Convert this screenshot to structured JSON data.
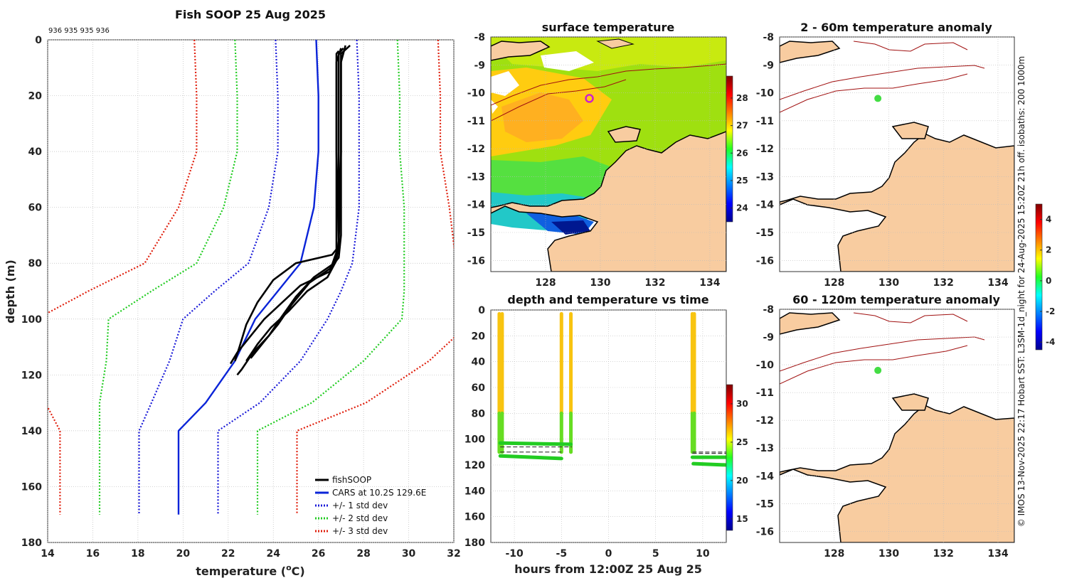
{
  "figure_title": "Fish SOOP 25 Aug 2025",
  "vessel_ids": "936 935 935 936",
  "credit": "© IMOS 13-Nov-2025 22:17 Hobart SST: L3SM-1d_night for 24-Aug-2025 15:20Z 21h off. isobaths: 200  1000m",
  "colors": {
    "fishsoop": "#000000",
    "cars": "#0a24d8",
    "std1": "#1a1ad8",
    "std2": "#22cc22",
    "std3": "#e0200e",
    "land": "#f8cca0",
    "isobath": "#a01010",
    "marker": "#cc22cc",
    "anomaly_marker": "#44dd44"
  },
  "chart_data": [
    {
      "id": "profile",
      "type": "line",
      "title": "Fish SOOP 25 Aug 2025",
      "xlabel_prefix": "temperature (",
      "xlabel_sup": "o",
      "xlabel_suffix": "C)",
      "ylabel": "depth (m)",
      "xlim": [
        14,
        32
      ],
      "ylim": [
        180,
        0
      ],
      "xticks": [
        "14",
        "16",
        "18",
        "20",
        "22",
        "24",
        "26",
        "28",
        "30",
        "32"
      ],
      "yticks": [
        "0",
        "20",
        "40",
        "60",
        "80",
        "100",
        "120",
        "140",
        "160",
        "180"
      ],
      "legend_labels": [
        "fishSOOP",
        "CARS at 10.2S 129.6E",
        "+/- 1 std dev",
        "+/- 2 std dev",
        "+/- 3 std dev"
      ],
      "cars_mean": [
        [
          25.9,
          0
        ],
        [
          26.0,
          20
        ],
        [
          26.0,
          40
        ],
        [
          25.8,
          60
        ],
        [
          25.2,
          80
        ],
        [
          24.2,
          90
        ],
        [
          23.2,
          100
        ],
        [
          22.3,
          115
        ],
        [
          21.0,
          130
        ],
        [
          19.8,
          140
        ],
        [
          19.8,
          170
        ]
      ],
      "std_offsets": {
        "std1": [
          1.8,
          1.8,
          1.8,
          2.0,
          2.3,
          2.8,
          3.2,
          2.9,
          2.4,
          1.75,
          1.75
        ],
        "std2": [
          3.6,
          3.6,
          3.6,
          4.0,
          4.6,
          5.6,
          6.5,
          5.7,
          4.7,
          3.5,
          3.5
        ],
        "std3": [
          5.4,
          5.4,
          5.4,
          6.0,
          6.9,
          8.4,
          9.7,
          8.6,
          7.1,
          5.25,
          5.25
        ]
      },
      "fishsoop_casts": [
        [
          [
            27.4,
            2
          ],
          [
            27.0,
            5
          ],
          [
            27.0,
            40
          ],
          [
            27.0,
            70
          ],
          [
            26.9,
            78
          ],
          [
            26.5,
            82
          ],
          [
            25.6,
            87
          ],
          [
            24.8,
            95
          ],
          [
            24.2,
            102
          ],
          [
            23.6,
            108
          ],
          [
            23.0,
            114
          ]
        ],
        [
          [
            27.1,
            3
          ],
          [
            26.9,
            5
          ],
          [
            26.9,
            40
          ],
          [
            26.9,
            75
          ],
          [
            26.7,
            80
          ],
          [
            25.8,
            85
          ],
          [
            25.0,
            92
          ],
          [
            24.3,
            100
          ],
          [
            23.8,
            106
          ],
          [
            23.1,
            112
          ],
          [
            22.6,
            118
          ],
          [
            22.4,
            120
          ]
        ],
        [
          [
            26.9,
            4
          ],
          [
            26.8,
            5
          ],
          [
            26.8,
            40
          ],
          [
            26.8,
            76
          ],
          [
            26.5,
            83
          ],
          [
            25.2,
            88
          ],
          [
            24.4,
            94
          ],
          [
            23.6,
            100
          ],
          [
            23.0,
            106
          ],
          [
            22.4,
            112
          ],
          [
            22.1,
            116
          ]
        ],
        [
          [
            27.0,
            3
          ],
          [
            26.8,
            8
          ],
          [
            26.8,
            40
          ],
          [
            26.9,
            72
          ],
          [
            26.8,
            79
          ],
          [
            26.4,
            85
          ],
          [
            25.5,
            90
          ],
          [
            24.7,
            97
          ],
          [
            23.9,
            103
          ],
          [
            23.3,
            109
          ],
          [
            22.8,
            115
          ]
        ],
        [
          [
            27.2,
            2
          ],
          [
            27.0,
            8
          ],
          [
            27.0,
            40
          ],
          [
            26.9,
            74
          ],
          [
            26.6,
            77
          ],
          [
            25.0,
            80
          ],
          [
            24.0,
            86
          ],
          [
            23.3,
            94
          ],
          [
            22.8,
            102
          ],
          [
            22.5,
            110
          ],
          [
            22.3,
            115
          ]
        ]
      ]
    },
    {
      "id": "sst",
      "type": "heatmap",
      "title": "surface temperature",
      "xticks": [
        "128",
        "130",
        "132",
        "134"
      ],
      "yticks": [
        "-8",
        "-9",
        "-10",
        "-11",
        "-12",
        "-13",
        "-14",
        "-15",
        "-16"
      ],
      "lon_range": [
        126,
        134.6
      ],
      "lat_range": [
        -16.4,
        -8
      ],
      "colorbar_ticks": [
        "28",
        "27",
        "26",
        "25",
        "24"
      ],
      "colorbar_range": [
        23.5,
        28.8
      ],
      "station": [
        129.6,
        -10.2
      ]
    },
    {
      "id": "timeseries",
      "type": "scatter",
      "title": "depth and temperature vs time",
      "xlabel": "hours from 12:00Z 25 Aug 25",
      "xlim": [
        -12.5,
        12.5
      ],
      "ylim": [
        180,
        0
      ],
      "xticks": [
        "-10",
        "-5",
        "0",
        "5",
        "10"
      ],
      "yticks": [
        "0",
        "20",
        "40",
        "60",
        "80",
        "100",
        "120",
        "140",
        "160",
        "180"
      ],
      "colorbar_ticks": [
        "30",
        "25",
        "20",
        "15"
      ],
      "colorbar_range": [
        13.5,
        32.5
      ]
    },
    {
      "id": "anom_shallow",
      "type": "heatmap",
      "title": "2 - 60m temperature anomaly",
      "xticks": [
        "128",
        "130",
        "132",
        "134"
      ],
      "yticks": [
        "-8",
        "-9",
        "-10",
        "-11",
        "-12",
        "-13",
        "-14",
        "-15",
        "-16"
      ],
      "station": [
        129.6,
        -10.2
      ]
    },
    {
      "id": "anom_deep",
      "type": "heatmap",
      "title": "60 - 120m temperature anomaly",
      "xticks": [
        "128",
        "130",
        "132",
        "134"
      ],
      "yticks": [
        "-8",
        "-9",
        "-10",
        "-11",
        "-12",
        "-13",
        "-14",
        "-15",
        "-16"
      ],
      "station": [
        129.6,
        -10.2
      ],
      "colorbar_ticks": [
        "4",
        "2",
        "0",
        "-2",
        "-4"
      ],
      "colorbar_range": [
        -4.5,
        5
      ]
    }
  ]
}
